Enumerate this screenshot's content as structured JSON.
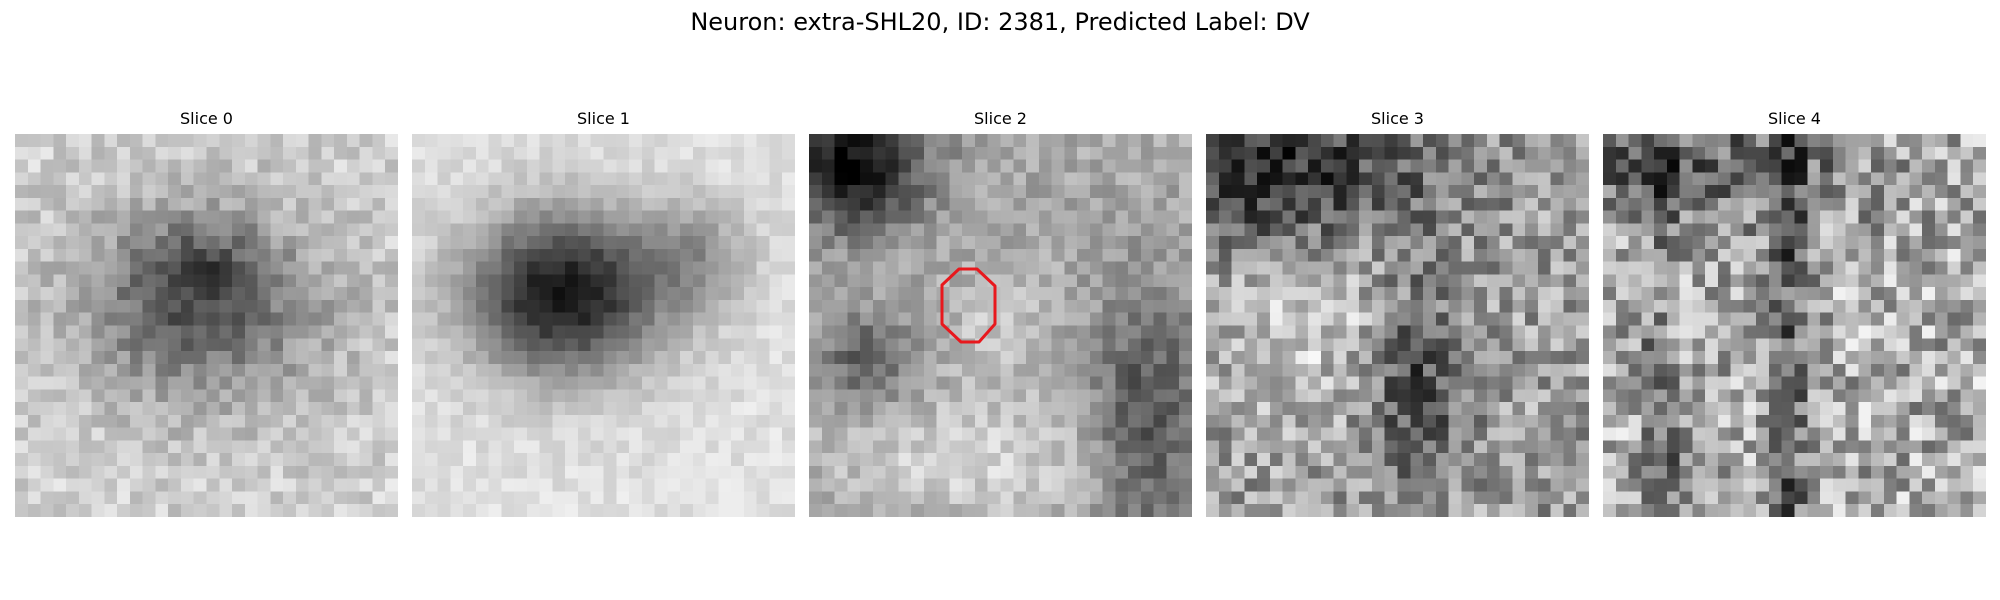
{
  "figure": {
    "title": "Neuron: extra-SHL20, ID: 2381, Predicted Label: DV"
  },
  "slices": [
    {
      "title": "Slice 0",
      "pattern": "dark-blob-center",
      "seed": 11
    },
    {
      "title": "Slice 1",
      "pattern": "dark-blob-center-strong",
      "seed": 23
    },
    {
      "title": "Slice 2",
      "pattern": "bright-center-dark-corners",
      "seed": 37,
      "has_outline": true
    },
    {
      "title": "Slice 3",
      "pattern": "dark-top-noise",
      "seed": 53
    },
    {
      "title": "Slice 4",
      "pattern": "vertical-stripes-noise",
      "seed": 71
    }
  ],
  "outline": {
    "color": "#e8181d",
    "shape": "octagon"
  },
  "colors": {
    "background": "#ffffff",
    "outline": "#e8181d"
  }
}
